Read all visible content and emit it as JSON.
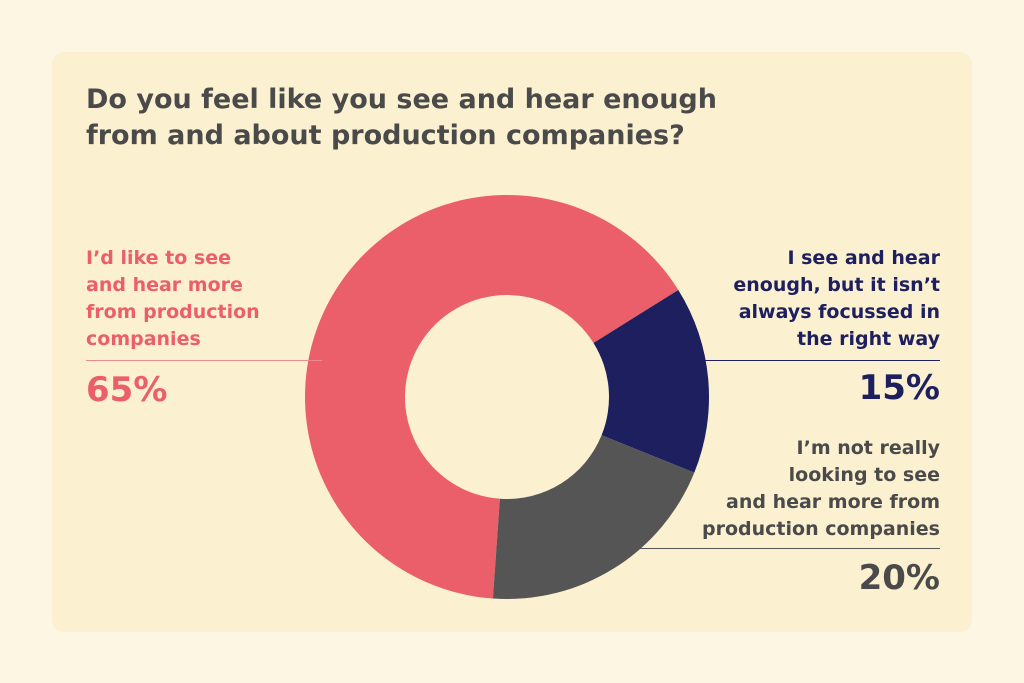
{
  "title_lines": [
    "Do you feel like you see and hear enough",
    "from and about production companies?"
  ],
  "chart_data": {
    "type": "pie",
    "variant": "donut",
    "title": "Do you feel like you see and hear enough from and about production companies?",
    "slices": [
      {
        "label_lines": [
          "I’d like to see",
          "and hear more",
          "from production",
          "companies"
        ],
        "value": 65,
        "value_label": "65%",
        "color": "#ea5f69"
      },
      {
        "label_lines": [
          "I see and hear",
          "enough, but it isn’t",
          "always focussed in",
          "the right way"
        ],
        "value": 15,
        "value_label": "15%",
        "color": "#1d1f5f"
      },
      {
        "label_lines": [
          "I’m not really",
          "looking to see",
          "and hear more from",
          "production companies"
        ],
        "value": 20,
        "value_label": "20%",
        "color": "#555555"
      }
    ],
    "legend_placement": "callouts"
  },
  "colors": {
    "background": "#fdf6e3",
    "card": "#fbf0d0",
    "title": "#4a4a4a"
  }
}
